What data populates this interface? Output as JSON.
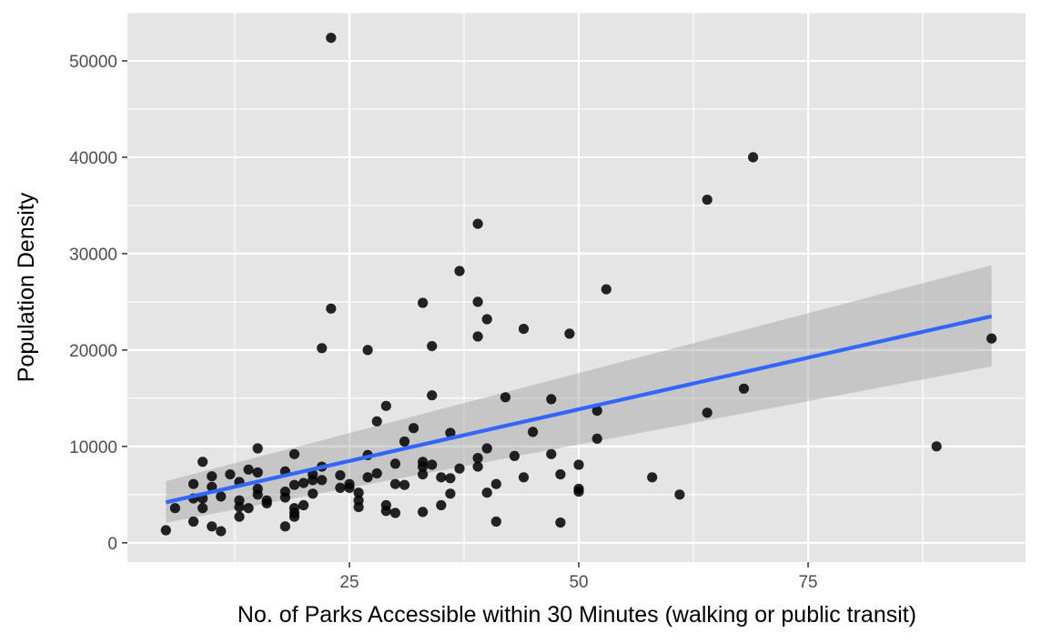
{
  "chart_data": {
    "type": "scatter",
    "title": "",
    "xlabel": "No. of Parks Accessible within 30 Minutes (walking or public transit)",
    "ylabel": "Population Density",
    "xlim": [
      0.8,
      98.7
    ],
    "ylim": [
      -2000,
      55000
    ],
    "x_ticks": [
      25,
      50,
      75
    ],
    "x_tick_labels": [
      "25",
      "50",
      "75"
    ],
    "y_ticks": [
      0,
      10000,
      20000,
      30000,
      40000,
      50000
    ],
    "y_tick_labels": [
      "0",
      "10000",
      "20000",
      "30000",
      "40000",
      "50000"
    ],
    "grid": true,
    "panel_background": "#e5e5e5",
    "point_color": "#000000",
    "points": [
      [
        5,
        1300
      ],
      [
        6,
        3600
      ],
      [
        8,
        6100
      ],
      [
        8,
        4600
      ],
      [
        8,
        2200
      ],
      [
        9,
        8400
      ],
      [
        9,
        4600
      ],
      [
        9,
        3600
      ],
      [
        10,
        6900
      ],
      [
        10,
        5800
      ],
      [
        10,
        1700
      ],
      [
        11,
        4800
      ],
      [
        11,
        1200
      ],
      [
        12,
        7100
      ],
      [
        13,
        6300
      ],
      [
        13,
        4400
      ],
      [
        13,
        3700
      ],
      [
        13,
        2700
      ],
      [
        14,
        7600
      ],
      [
        14,
        3600
      ],
      [
        15,
        9800
      ],
      [
        15,
        7300
      ],
      [
        15,
        5600
      ],
      [
        15,
        5000
      ],
      [
        16,
        4400
      ],
      [
        16,
        4100
      ],
      [
        18,
        7400
      ],
      [
        18,
        5300
      ],
      [
        18,
        4700
      ],
      [
        18,
        1700
      ],
      [
        19,
        9200
      ],
      [
        19,
        6000
      ],
      [
        19,
        3600
      ],
      [
        19,
        3100
      ],
      [
        19,
        2700
      ],
      [
        20,
        6200
      ],
      [
        20,
        3900
      ],
      [
        21,
        7100
      ],
      [
        21,
        6500
      ],
      [
        21,
        5100
      ],
      [
        22,
        20200
      ],
      [
        22,
        7900
      ],
      [
        22,
        6500
      ],
      [
        23,
        52400
      ],
      [
        23,
        24300
      ],
      [
        24,
        7000
      ],
      [
        24,
        5700
      ],
      [
        25,
        6100
      ],
      [
        25,
        5700
      ],
      [
        26,
        5200
      ],
      [
        26,
        4400
      ],
      [
        26,
        3700
      ],
      [
        27,
        20000
      ],
      [
        27,
        9100
      ],
      [
        27,
        6800
      ],
      [
        28,
        12600
      ],
      [
        28,
        7200
      ],
      [
        29,
        14200
      ],
      [
        29,
        3900
      ],
      [
        29,
        3300
      ],
      [
        30,
        8200
      ],
      [
        30,
        6100
      ],
      [
        30,
        3100
      ],
      [
        31,
        10500
      ],
      [
        31,
        6000
      ],
      [
        32,
        11900
      ],
      [
        33,
        24900
      ],
      [
        33,
        8400
      ],
      [
        33,
        7900
      ],
      [
        33,
        7100
      ],
      [
        33,
        3200
      ],
      [
        34,
        20400
      ],
      [
        34,
        15300
      ],
      [
        34,
        8100
      ],
      [
        35,
        6800
      ],
      [
        35,
        3900
      ],
      [
        36,
        11400
      ],
      [
        36,
        6700
      ],
      [
        36,
        5100
      ],
      [
        37,
        28200
      ],
      [
        37,
        7700
      ],
      [
        39,
        33100
      ],
      [
        39,
        25000
      ],
      [
        39,
        21400
      ],
      [
        39,
        8800
      ],
      [
        39,
        7900
      ],
      [
        40,
        23200
      ],
      [
        40,
        9800
      ],
      [
        40,
        5200
      ],
      [
        41,
        6100
      ],
      [
        41,
        2200
      ],
      [
        42,
        15100
      ],
      [
        43,
        9000
      ],
      [
        44,
        22200
      ],
      [
        44,
        6800
      ],
      [
        45,
        11500
      ],
      [
        47,
        14900
      ],
      [
        47,
        9200
      ],
      [
        48,
        7100
      ],
      [
        48,
        2100
      ],
      [
        49,
        21700
      ],
      [
        50,
        8100
      ],
      [
        50,
        5600
      ],
      [
        50,
        5300
      ],
      [
        52,
        13700
      ],
      [
        52,
        10800
      ],
      [
        53,
        26300
      ],
      [
        58,
        6800
      ],
      [
        61,
        5000
      ],
      [
        64,
        35600
      ],
      [
        64,
        13500
      ],
      [
        68,
        16000
      ],
      [
        69,
        40000
      ],
      [
        89,
        10000
      ],
      [
        95,
        21200
      ]
    ],
    "fit": {
      "method": "linear",
      "line_color": "#3366ff",
      "band_color": "#999999",
      "x": [
        5,
        95
      ],
      "y": [
        4200,
        23500
      ],
      "band_lower": [
        2100,
        18300
      ],
      "band_upper": [
        6400,
        28800
      ]
    }
  }
}
